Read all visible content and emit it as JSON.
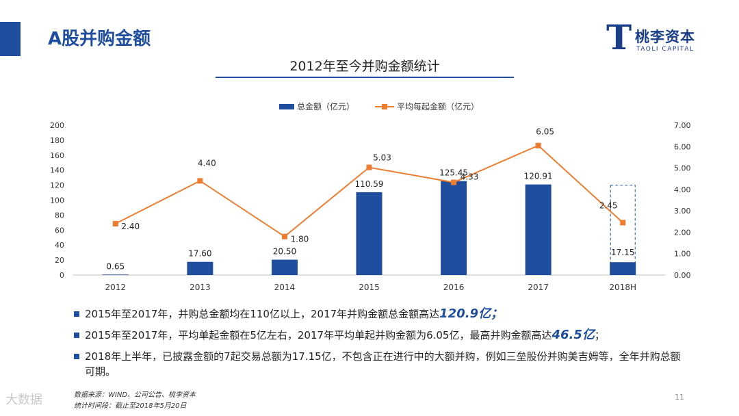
{
  "page": {
    "title": "A股并购金额",
    "page_number": "11"
  },
  "logo": {
    "mark": "T",
    "chinese": "桃李资本",
    "english": "TAOLI CAPITAL"
  },
  "chart_data": {
    "type": "bar+line",
    "title": "2012年至今并购金额统计",
    "categories": [
      "2012",
      "2013",
      "2014",
      "2015",
      "2016",
      "2017",
      "2018H"
    ],
    "series": [
      {
        "name": "总金额（亿元）",
        "type": "bar",
        "axis": "left",
        "color": "#1f4e9e",
        "values": [
          0.65,
          17.6,
          20.5,
          110.59,
          125.45,
          120.91,
          17.15
        ],
        "labels": [
          "0.65",
          "17.60",
          "20.50",
          "110.59",
          "125.45",
          "120.91",
          "17.15"
        ]
      },
      {
        "name": "平均每起金额（亿元）",
        "type": "line",
        "axis": "right",
        "color": "#ed7d31",
        "values": [
          2.4,
          4.4,
          1.8,
          5.03,
          4.33,
          6.05,
          2.45
        ],
        "labels": [
          "2.40",
          "4.40",
          "1.80",
          "5.03",
          "4.33",
          "6.05",
          "2.45"
        ]
      }
    ],
    "y_left": {
      "min": 0,
      "max": 200,
      "ticks": [
        "0",
        "20",
        "40",
        "60",
        "80",
        "100",
        "120",
        "140",
        "160",
        "180",
        "200"
      ]
    },
    "y_right": {
      "min": 0,
      "max": 7,
      "ticks": [
        "0.00",
        "1.00",
        "2.00",
        "3.00",
        "4.00",
        "5.00",
        "6.00",
        "7.00"
      ]
    },
    "legend_position": "top",
    "grid": false
  },
  "bullets": [
    {
      "prefix": "2015年至2017年，并购总金额均在110亿以上，2017年并购金额总金额高达",
      "highlight": "120.9亿；",
      "suffix": ""
    },
    {
      "prefix": "2015年至2017年，平均单起金额在5亿左右，2017年平均单起并购金额为6.05亿，最高并购金额高达",
      "highlight": "46.5亿",
      "suffix": "；"
    },
    {
      "prefix": "2018年上半年，已披露金额的7起交易总额为17.15亿，不包含正在进行中的大额并购，例如三垒股份并购美吉姆等，全年并购总额可期。",
      "highlight": "",
      "suffix": ""
    }
  ],
  "source": {
    "line1": "数据来源：WIND、公司公告、桃李资本",
    "line2": "统计时间段：截止至2018年5月20日"
  },
  "watermark": "大数据"
}
